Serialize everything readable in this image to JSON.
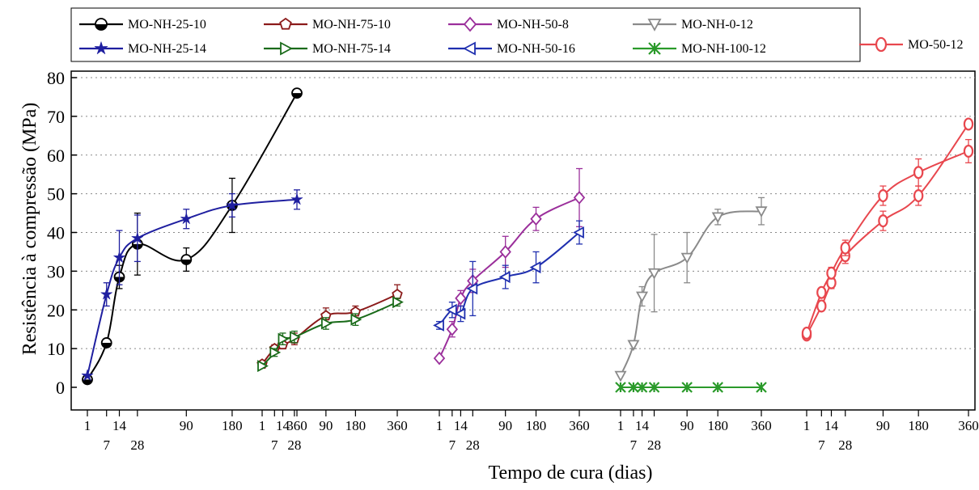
{
  "chart_data": {
    "type": "line",
    "xlabel": "Tempo de cura (dias)",
    "ylabel": "Resistência à compressão (MPa)",
    "ylim": [
      -5,
      80
    ],
    "yticks": [
      0,
      10,
      20,
      30,
      40,
      50,
      60,
      70,
      80
    ],
    "grid": "horizontal dotted",
    "legend": "top",
    "x_ticks_top": [
      "1",
      "14",
      "90",
      "180",
      "360"
    ],
    "x_ticks_bottom": [
      "7",
      "28"
    ],
    "groups": [
      {
        "series": [
          {
            "name": "MO-NH-25-10",
            "color": "#000000",
            "marker": "circle-half",
            "x": [
              1,
              7,
              14,
              28,
              90,
              180,
              360
            ],
            "y": [
              2,
              11.5,
              28.5,
              37,
              33,
              47,
              76
            ],
            "err": [
              0,
              0,
              3,
              8,
              3,
              7,
              1
            ]
          },
          {
            "name": "MO-NH-25-14",
            "color": "#1f1fa0",
            "marker": "star",
            "x": [
              1,
              7,
              14,
              28,
              90,
              180,
              360
            ],
            "y": [
              3,
              24,
              33.5,
              38.5,
              43.5,
              47,
              48.5
            ],
            "err": [
              0,
              3,
              7,
              6,
              2.5,
              3,
              2.5
            ]
          }
        ]
      },
      {
        "series": [
          {
            "name": "MO-NH-75-10",
            "color": "#8b1a1a",
            "marker": "pentagon",
            "x": [
              1,
              7,
              14,
              28,
              90,
              180,
              360
            ],
            "y": [
              6,
              10,
              11,
              12.5,
              18.5,
              19.5,
              24
            ],
            "err": [
              0,
              1,
              1,
              1.5,
              2,
              1.5,
              2.5
            ]
          },
          {
            "name": "MO-NH-75-14",
            "color": "#1a6b1a",
            "marker": "triangle-right",
            "x": [
              1,
              7,
              14,
              28,
              90,
              180,
              360
            ],
            "y": [
              5.5,
              9,
              12.5,
              13,
              16.5,
              17.5,
              22
            ],
            "err": [
              0,
              1,
              1.5,
              1.5,
              1.5,
              1.5,
              1
            ]
          }
        ]
      },
      {
        "series": [
          {
            "name": "MO-NH-50-8",
            "color": "#9b2f9b",
            "marker": "diamond",
            "x": [
              1,
              7,
              14,
              28,
              90,
              180,
              360
            ],
            "y": [
              7.5,
              15,
              23,
              27.5,
              35,
              43.5,
              49
            ],
            "err": [
              0,
              2,
              2,
              3,
              4,
              3,
              7.5
            ]
          },
          {
            "name": "MO-NH-50-16",
            "color": "#1f2faf",
            "marker": "triangle-left",
            "x": [
              1,
              7,
              14,
              28,
              90,
              180,
              360
            ],
            "y": [
              16,
              20,
              19,
              25.5,
              28.5,
              31,
              40
            ],
            "err": [
              1,
              2,
              2,
              7,
              3,
              4,
              3
            ]
          }
        ]
      },
      {
        "series": [
          {
            "name": "MO-NH-0-12",
            "color": "#8a8a8a",
            "marker": "triangle-down",
            "x": [
              1,
              7,
              14,
              28,
              90,
              180,
              360
            ],
            "y": [
              3,
              11,
              23.5,
              29.5,
              33.5,
              44,
              45.5
            ],
            "err": [
              0,
              1,
              2.5,
              10,
              6.5,
              2,
              3.5
            ]
          },
          {
            "name": "MO-NH-100-12",
            "color": "#2a9a2a",
            "marker": "x-star",
            "x": [
              1,
              7,
              14,
              28,
              90,
              180,
              360
            ],
            "y": [
              0,
              0,
              0,
              0,
              0,
              0,
              0
            ],
            "err": [
              0,
              0,
              0,
              0,
              0,
              0,
              0
            ]
          }
        ]
      },
      {
        "series": [
          {
            "name": "MO-50-12",
            "color": "#e8474e",
            "marker": "circle-open",
            "x": [
              1,
              7,
              14,
              28,
              90,
              180,
              360
            ],
            "y": [
              13.5,
              21,
              27,
              34,
              43,
              49.5,
              68
            ],
            "err": [
              1,
              1,
              1.5,
              2,
              2.5,
              2.5,
              1
            ]
          },
          {
            "name": "MO-50-12",
            "color": "#e8474e",
            "marker": "circle-open",
            "show_in_legend": false,
            "x": [
              1,
              7,
              14,
              28,
              90,
              180,
              360
            ],
            "y": [
              14,
              24.5,
              29.5,
              36,
              49.5,
              55.5,
              61
            ],
            "err": [
              1,
              1,
              1.5,
              2,
              2.5,
              3.5,
              3
            ]
          }
        ]
      }
    ]
  },
  "icons": {
    "circle-half": "half-filled circle marker",
    "star": "star marker",
    "pentagon": "pentagon marker",
    "triangle-right": "right triangle marker",
    "diamond": "diamond marker",
    "triangle-left": "left triangle marker",
    "triangle-down": "down triangle marker",
    "x-star": "asterisk marker",
    "circle-open": "open circle marker"
  }
}
